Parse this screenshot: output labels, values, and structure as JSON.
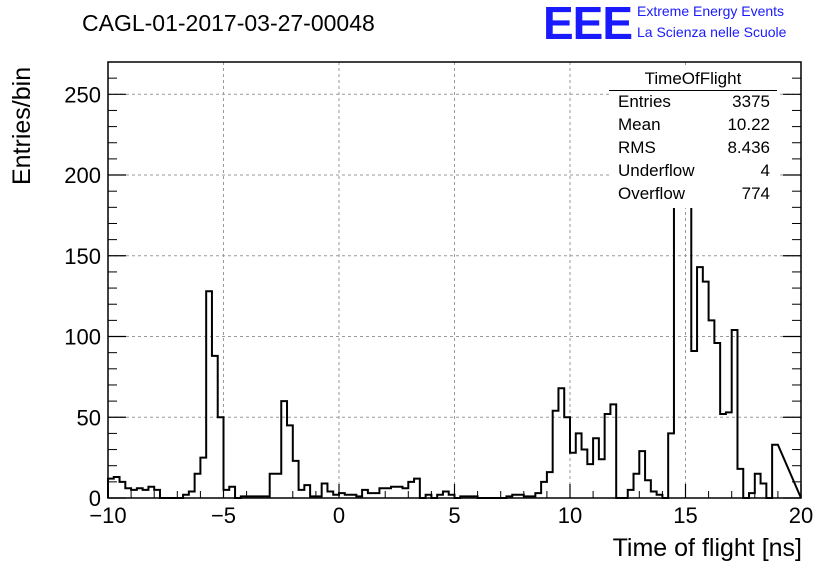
{
  "header": {
    "run_title": "CAGL-01-2017-03-27-00048",
    "logo_text": "EEE",
    "logo_line1": "Extreme Energy Events",
    "logo_line2": "La Scienza nelle Scuole",
    "logo_color": "#1a1aff"
  },
  "stats_box": {
    "title": "TimeOfFlight",
    "rows": [
      {
        "key": "Entries",
        "value": "3375"
      },
      {
        "key": "Mean",
        "value": "10.22"
      },
      {
        "key": "RMS",
        "value": "8.436"
      },
      {
        "key": "Underflow",
        "value": "4"
      },
      {
        "key": "Overflow",
        "value": "774"
      }
    ]
  },
  "chart_data": {
    "type": "histogram",
    "xlabel": "Time of flight [ns]",
    "ylabel": "Entries/bin",
    "xlim": [
      -10,
      20
    ],
    "ylim": [
      0,
      270
    ],
    "x_ticks": [
      -10,
      -5,
      0,
      5,
      10,
      15,
      20
    ],
    "y_ticks": [
      0,
      50,
      100,
      150,
      200,
      250
    ],
    "grid": true,
    "bin_width": 0.25,
    "line_color": "#000000",
    "series": [
      {
        "bin_low_edges": [
          -10,
          -9.75,
          -9.5,
          -9.25,
          -9,
          -8.75,
          -8.5,
          -8.25,
          -8,
          -7.75,
          -7.5,
          -7.25,
          -7,
          -6.75,
          -6.5,
          -6.25,
          -6,
          -5.75,
          -5.5,
          -5.25,
          -5,
          -4.75,
          -4.5,
          -4.25,
          -4,
          -3.75,
          -3.5,
          -3.25,
          -3,
          -2.75,
          -2.5,
          -2.25,
          -2,
          -1.75,
          -1.5,
          -1.25,
          -1,
          -0.75,
          -0.5,
          -0.25,
          0,
          0.25,
          0.5,
          0.75,
          1,
          1.25,
          1.5,
          1.75,
          2,
          2.25,
          2.5,
          2.75,
          3,
          3.25,
          3.5,
          3.75,
          4,
          4.25,
          4.5,
          4.75,
          5,
          5.25,
          5.5,
          5.75,
          6,
          6.25,
          6.5,
          6.75,
          7,
          7.25,
          7.5,
          7.75,
          8,
          8.25,
          8.5,
          8.75,
          9,
          9.25,
          9.5,
          9.75,
          10,
          10.25,
          10.5,
          10.75,
          11,
          11.25,
          11.5,
          11.75,
          12,
          12.25,
          12.5,
          12.75,
          13,
          13.25,
          13.5,
          13.75,
          14,
          14.25,
          14.5,
          14.75,
          15,
          15.25,
          15.5,
          15.75,
          16,
          16.25,
          16.5,
          16.75,
          17,
          17.25,
          17.5,
          17.75,
          18,
          18.25,
          18.5,
          18.75,
          19,
          19.25,
          19.5,
          19.75
        ],
        "values": [
          12,
          13,
          10,
          6,
          5,
          6,
          5,
          7,
          5,
          0,
          0,
          0,
          0,
          2,
          4,
          15,
          25,
          128,
          88,
          50,
          5,
          7,
          0,
          1,
          1,
          1,
          1,
          1,
          15,
          15,
          60,
          45,
          23,
          5,
          8,
          1,
          1,
          9,
          4,
          2,
          3,
          2,
          2,
          1,
          5,
          3,
          3,
          6,
          6,
          7,
          7,
          6,
          10,
          12,
          0,
          2,
          0,
          2,
          4,
          2,
          0,
          1,
          1,
          1,
          0,
          0,
          0,
          0,
          0,
          1,
          2,
          2,
          1,
          1,
          3,
          10,
          16,
          54,
          68,
          50,
          28,
          40,
          30,
          21,
          37,
          24,
          52,
          58,
          0,
          0,
          5,
          15,
          29,
          11,
          4,
          2,
          0,
          40,
          185,
          258,
          248,
          91,
          143,
          134,
          110,
          96,
          52,
          53,
          104,
          18,
          0,
          3,
          15,
          9,
          0,
          33
        ]
      }
    ]
  }
}
